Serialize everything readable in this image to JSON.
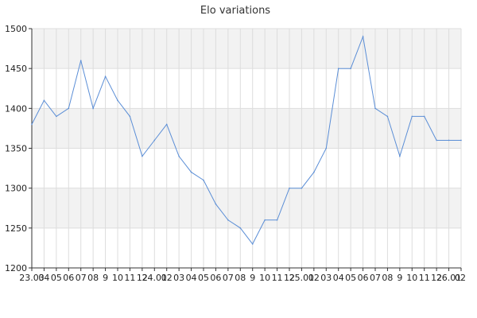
{
  "chart_data": {
    "type": "line",
    "title": "Elo variations",
    "xlabel": "",
    "ylabel": "",
    "ylim": [
      1200,
      1500
    ],
    "yticks": [
      1200,
      1250,
      1300,
      1350,
      1400,
      1450,
      1500
    ],
    "grid": true,
    "x_tick_labels": [
      "23.03",
      "04",
      "05",
      "06",
      "07",
      "08",
      "9",
      "10",
      "11",
      "12",
      "24.01",
      "02",
      "03",
      "04",
      "05",
      "06",
      "07",
      "08",
      "9",
      "10",
      "11",
      "12",
      "25.01",
      "02",
      "03",
      "04",
      "05",
      "06",
      "07",
      "08",
      "9",
      "10",
      "11",
      "12",
      "26.01",
      "02"
    ],
    "series": [
      {
        "color": "#5b8ed6",
        "values": [
          1380,
          1410,
          1390,
          1400,
          1460,
          1400,
          1440,
          1410,
          1390,
          1340,
          1360,
          1380,
          1340,
          1320,
          1310,
          1280,
          1260,
          1250,
          1230,
          1260,
          1260,
          1300,
          1300,
          1320,
          1350,
          1450,
          1450,
          1490,
          1400,
          1390,
          1340,
          1390,
          1390,
          1360,
          1360,
          1360
        ]
      }
    ],
    "colors": {
      "band": "#f2f2f2",
      "grid": "#dddddd",
      "axis": "#333333",
      "line": "#5b8ed6"
    }
  }
}
